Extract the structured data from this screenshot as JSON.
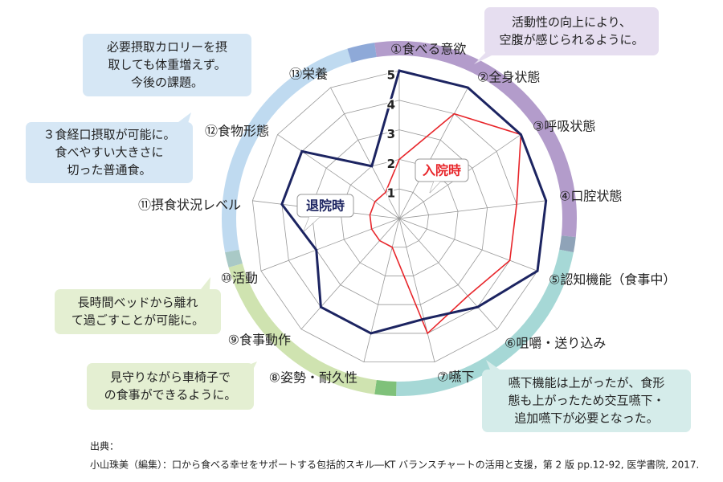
{
  "chart_data": {
    "type": "radar",
    "categories": [
      "①食べる意欲",
      "②全身状態",
      "③呼吸状態",
      "④口腔状態",
      "⑤認知機能（食事中）",
      "⑥咀嚼・送り込み",
      "⑦嚥下",
      "⑧姿勢・耐久性",
      "⑨食事動作",
      "⑩活動",
      "⑪摂食状況レベル",
      "⑫食物形態",
      "⑬栄養"
    ],
    "series": [
      {
        "name": "入院時",
        "color": "#e8262b",
        "values": [
          2,
          4,
          5,
          4,
          4,
          3.5,
          4,
          1,
          1,
          1,
          1,
          1,
          1
        ]
      },
      {
        "name": "退院時",
        "color": "#1c2461",
        "values": [
          5,
          5,
          5,
          5,
          5,
          4,
          3.5,
          4,
          4,
          3,
          4,
          4,
          2
        ]
      }
    ],
    "ylim": [
      0,
      5
    ],
    "yticks": [
      1,
      2,
      3,
      4,
      5
    ],
    "grid": true,
    "annotations": [
      {
        "lines": [
          "活動性の向上により、",
          "空腹が感じられるように。"
        ],
        "color": "#e6def0"
      },
      {
        "lines": [
          "必要摂取カロリーを摂",
          "取しても体重増えず。",
          "今後の課題。"
        ],
        "color": "#d6e7f5"
      },
      {
        "lines": [
          "３食経口摂取が可能に。",
          "食べやすい大きさに",
          "切った普通食。"
        ],
        "color": "#d6e7f5"
      },
      {
        "lines": [
          "長時間ベッドから離れ",
          "て過ごすことが可能に。"
        ],
        "color": "#e4efd2"
      },
      {
        "lines": [
          "見守りながら車椅子で",
          "の食事ができるように。"
        ],
        "color": "#e4efd2"
      },
      {
        "lines": [
          "嚥下機能は上がったが、食形",
          "態も上がったため交互嚥下・",
          "追加嚥下が必要となった。"
        ],
        "color": "#d5ecea"
      }
    ],
    "source": [
      "出典：",
      "小山珠美（編集）：口から食べる幸せをサポートする包括的スキル―KT バランスチャートの活用と支援，第 2 版 pp.12-92, 医学書院,  2017."
    ]
  }
}
